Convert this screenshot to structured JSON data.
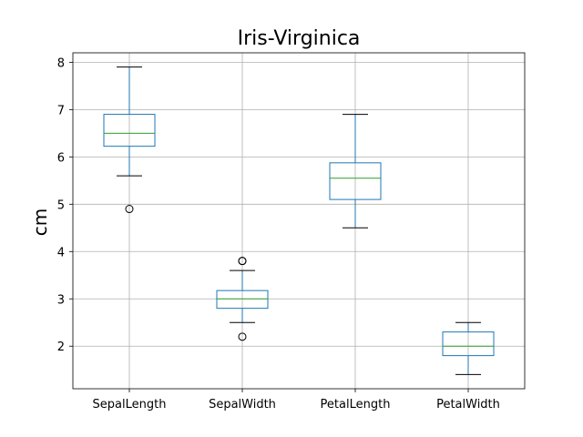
{
  "chart_data": {
    "type": "box",
    "title": "Iris-Virginica",
    "xlabel": "",
    "ylabel": "cm",
    "ylim": [
      1.1,
      8.2
    ],
    "yticks": [
      2,
      3,
      4,
      5,
      6,
      7,
      8
    ],
    "grid": true,
    "categories": [
      "SepalLength",
      "SepalWidth",
      "PetalLength",
      "PetalWidth"
    ],
    "boxes": [
      {
        "whisker_low": 5.6,
        "q1": 6.225,
        "median": 6.5,
        "q3": 6.9,
        "whisker_high": 7.9,
        "fliers": [
          4.9
        ]
      },
      {
        "whisker_low": 2.5,
        "q1": 2.8,
        "median": 3.0,
        "q3": 3.175,
        "whisker_high": 3.6,
        "fliers": [
          3.8,
          3.8,
          2.2
        ]
      },
      {
        "whisker_low": 4.5,
        "q1": 5.1,
        "median": 5.55,
        "q3": 5.875,
        "whisker_high": 6.9,
        "fliers": []
      },
      {
        "whisker_low": 1.4,
        "q1": 1.8,
        "median": 2.0,
        "q3": 2.3,
        "whisker_high": 2.5,
        "fliers": []
      }
    ],
    "colors": {
      "box": "#1f77b4",
      "median": "#2ca02c",
      "cap": "#000000",
      "grid": "#b0b0b0"
    }
  }
}
